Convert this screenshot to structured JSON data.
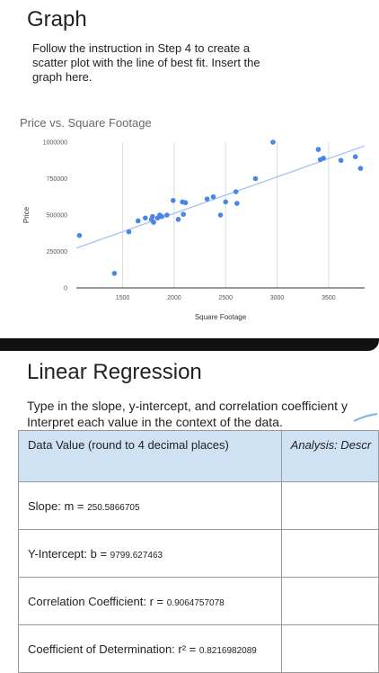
{
  "graph_section": {
    "heading": "Graph",
    "instruction": "Follow the instruction in Step 4 to create a scatter plot with the line of best fit.  Insert the graph here."
  },
  "chart_data": {
    "type": "scatter",
    "title": "Price vs. Square Footage",
    "xlabel": "Square Footage",
    "ylabel": "Price",
    "xlim": [
      1050,
      3850
    ],
    "ylim": [
      0,
      1000000
    ],
    "x_ticks": [
      1500,
      2000,
      2500,
      3000,
      3500
    ],
    "y_ticks": [
      0,
      250000,
      500000,
      750000,
      1000000
    ],
    "x_tick_labels": [
      "1500",
      "2000",
      "2500",
      "3000",
      "3500"
    ],
    "y_tick_labels": [
      "0",
      "250000",
      "500000",
      "750000",
      "1000000"
    ],
    "grid": "vertical",
    "point_color": "#4a86e8",
    "trendline_color": "#a4c2f4",
    "trendline": {
      "slope": 250.5866705,
      "intercept": 9799.627463
    },
    "points": [
      {
        "x": 1080,
        "y": 360000
      },
      {
        "x": 1420,
        "y": 100000
      },
      {
        "x": 1560,
        "y": 385000
      },
      {
        "x": 1650,
        "y": 460000
      },
      {
        "x": 1720,
        "y": 480000
      },
      {
        "x": 1780,
        "y": 470000
      },
      {
        "x": 1790,
        "y": 490000
      },
      {
        "x": 1800,
        "y": 450000
      },
      {
        "x": 1840,
        "y": 480000
      },
      {
        "x": 1860,
        "y": 500000
      },
      {
        "x": 1880,
        "y": 490000
      },
      {
        "x": 1930,
        "y": 500000
      },
      {
        "x": 1990,
        "y": 600000
      },
      {
        "x": 2040,
        "y": 470000
      },
      {
        "x": 2080,
        "y": 590000
      },
      {
        "x": 2110,
        "y": 585000
      },
      {
        "x": 2090,
        "y": 505000
      },
      {
        "x": 2320,
        "y": 610000
      },
      {
        "x": 2380,
        "y": 625000
      },
      {
        "x": 2450,
        "y": 500000
      },
      {
        "x": 2500,
        "y": 590000
      },
      {
        "x": 2600,
        "y": 660000
      },
      {
        "x": 2610,
        "y": 580000
      },
      {
        "x": 2790,
        "y": 750000
      },
      {
        "x": 2960,
        "y": 1000000
      },
      {
        "x": 3400,
        "y": 950000
      },
      {
        "x": 3420,
        "y": 880000
      },
      {
        "x": 3450,
        "y": 890000
      },
      {
        "x": 3620,
        "y": 875000
      },
      {
        "x": 3760,
        "y": 900000
      },
      {
        "x": 3810,
        "y": 820000
      }
    ]
  },
  "regression_section": {
    "heading": "Linear Regression",
    "instruction_line1": "Type in the slope, y-intercept, and correlation coefficient y",
    "instruction_line2": "Interpret each value in the context of the data.",
    "table": {
      "header_data": "Data Value (round to 4 decimal places)",
      "header_analysis": "Analysis: Descr",
      "rows": [
        {
          "label": "Slope:  m = ",
          "value": "250.5866705"
        },
        {
          "label": "Y-Intercept: b =  ",
          "value": "9799.627463"
        },
        {
          "label": "Correlation Coefficient: r =  ",
          "value": "0.9064757078"
        },
        {
          "label": "Coefficient of Determination:  r² =  ",
          "value": "0.8216982089"
        }
      ]
    }
  }
}
